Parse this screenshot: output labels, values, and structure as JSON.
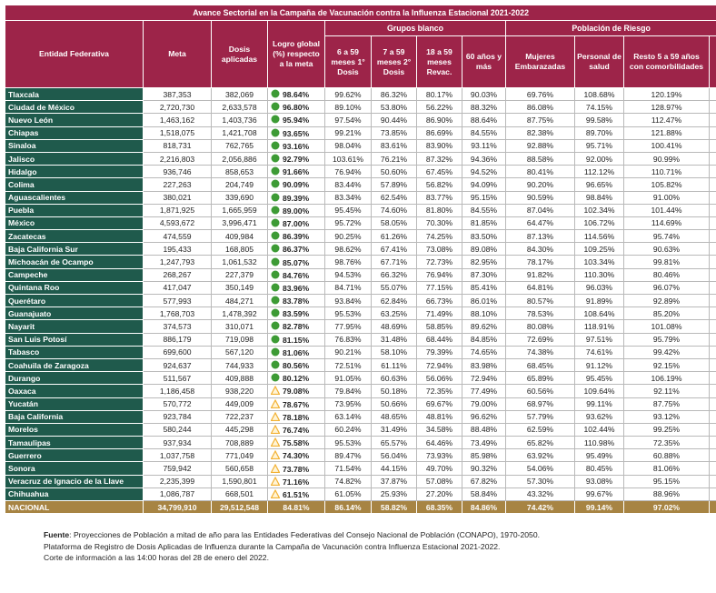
{
  "table": {
    "title": "Avance Sectorial en la Campaña de Vacunación contra la Influenza Estacional 2021-2022",
    "group_headers": [
      "Grupos blanco",
      "Población de Riesgo"
    ],
    "columns": [
      "Entidad Federativa",
      "Meta",
      "Dosis aplicadas",
      "Logro global (%) respecto a la meta",
      "6 a 59 meses 1° Dosis",
      "7 a 59 meses 2° Dosis",
      "18 a 59 meses Revac.",
      "60 años y más",
      "Mujeres Embarazadas",
      "Personal de salud",
      "Resto 5 a 59 años con comorbilidades"
    ],
    "indicator_colors": {
      "circle": "#3d9b35",
      "triangle": "#f2b134"
    },
    "rows": [
      [
        "Tlaxcala",
        "387,353",
        "382,069",
        "98.64%",
        "99.62%",
        "86.32%",
        "80.17%",
        "90.03%",
        "69.76%",
        "108.68%",
        "120.19%"
      ],
      [
        "Ciudad de México",
        "2,720,730",
        "2,633,578",
        "96.80%",
        "89.10%",
        "53.80%",
        "56.22%",
        "88.32%",
        "86.08%",
        "74.15%",
        "128.97%"
      ],
      [
        "Nuevo León",
        "1,463,162",
        "1,403,736",
        "95.94%",
        "97.54%",
        "90.44%",
        "86.90%",
        "88.64%",
        "87.75%",
        "99.58%",
        "112.47%"
      ],
      [
        "Chiapas",
        "1,518,075",
        "1,421,708",
        "93.65%",
        "99.21%",
        "73.85%",
        "86.69%",
        "84.55%",
        "82.38%",
        "89.70%",
        "121.88%"
      ],
      [
        "Sinaloa",
        "818,731",
        "762,765",
        "93.16%",
        "98.04%",
        "83.61%",
        "83.90%",
        "93.11%",
        "92.88%",
        "95.71%",
        "100.41%"
      ],
      [
        "Jalisco",
        "2,216,803",
        "2,056,886",
        "92.79%",
        "103.61%",
        "76.21%",
        "87.32%",
        "94.36%",
        "88.58%",
        "92.00%",
        "90.99%"
      ],
      [
        "Hidalgo",
        "936,746",
        "858,653",
        "91.66%",
        "76.94%",
        "50.60%",
        "67.45%",
        "94.52%",
        "80.41%",
        "112.12%",
        "110.71%"
      ],
      [
        "Colima",
        "227,263",
        "204,749",
        "90.09%",
        "83.44%",
        "57.89%",
        "56.82%",
        "94.09%",
        "90.20%",
        "96.65%",
        "105.82%"
      ],
      [
        "Aguascalientes",
        "380,021",
        "339,690",
        "89.39%",
        "83.34%",
        "62.54%",
        "83.77%",
        "95.15%",
        "90.59%",
        "98.84%",
        "91.00%"
      ],
      [
        "Puebla",
        "1,871,925",
        "1,665,959",
        "89.00%",
        "95.45%",
        "74.60%",
        "81.80%",
        "84.55%",
        "87.04%",
        "102.34%",
        "101.44%"
      ],
      [
        "México",
        "4,593,672",
        "3,996,471",
        "87.00%",
        "95.72%",
        "58.05%",
        "70.30%",
        "81.85%",
        "64.47%",
        "106.72%",
        "114.69%"
      ],
      [
        "Zacatecas",
        "474,559",
        "409,984",
        "86.39%",
        "90.25%",
        "61.26%",
        "74.25%",
        "83.50%",
        "87.13%",
        "114.56%",
        "95.74%"
      ],
      [
        "Baja California Sur",
        "195,433",
        "168,805",
        "86.37%",
        "98.62%",
        "67.41%",
        "73.08%",
        "89.08%",
        "84.30%",
        "109.25%",
        "90.63%"
      ],
      [
        "Michoacán de Ocampo",
        "1,247,793",
        "1,061,532",
        "85.07%",
        "98.76%",
        "67.71%",
        "72.73%",
        "82.95%",
        "78.17%",
        "103.34%",
        "99.81%"
      ],
      [
        "Campeche",
        "268,267",
        "227,379",
        "84.76%",
        "94.53%",
        "66.32%",
        "76.94%",
        "87.30%",
        "91.82%",
        "110.30%",
        "80.46%"
      ],
      [
        "Quintana Roo",
        "417,047",
        "350,149",
        "83.96%",
        "84.71%",
        "55.07%",
        "77.15%",
        "85.41%",
        "64.81%",
        "96.03%",
        "96.07%"
      ],
      [
        "Querétaro",
        "577,993",
        "484,271",
        "83.78%",
        "93.84%",
        "62.84%",
        "66.73%",
        "86.01%",
        "80.57%",
        "91.89%",
        "92.89%"
      ],
      [
        "Guanajuato",
        "1,768,703",
        "1,478,392",
        "83.59%",
        "95.53%",
        "63.25%",
        "71.49%",
        "88.10%",
        "78.53%",
        "108.64%",
        "85.20%"
      ],
      [
        "Nayarit",
        "374,573",
        "310,071",
        "82.78%",
        "77.95%",
        "48.69%",
        "58.85%",
        "89.62%",
        "80.08%",
        "118.91%",
        "101.08%"
      ],
      [
        "San Luis Potosí",
        "886,179",
        "719,098",
        "81.15%",
        "76.83%",
        "31.48%",
        "68.44%",
        "84.85%",
        "72.69%",
        "97.51%",
        "95.79%"
      ],
      [
        "Tabasco",
        "699,600",
        "567,120",
        "81.06%",
        "90.21%",
        "58.10%",
        "79.39%",
        "74.65%",
        "74.38%",
        "74.61%",
        "99.42%"
      ],
      [
        "Coahuila de Zaragoza",
        "924,637",
        "744,933",
        "80.56%",
        "72.51%",
        "61.11%",
        "72.94%",
        "83.98%",
        "68.45%",
        "91.12%",
        "92.15%"
      ],
      [
        "Durango",
        "511,567",
        "409,888",
        "80.12%",
        "91.05%",
        "60.63%",
        "56.06%",
        "72.94%",
        "65.89%",
        "95.45%",
        "106.19%"
      ],
      [
        "Oaxaca",
        "1,186,458",
        "938,220",
        "79.08%",
        "79.84%",
        "50.18%",
        "72.35%",
        "77.49%",
        "60.56%",
        "109.64%",
        "92.11%"
      ],
      [
        "Yucatán",
        "570,772",
        "449,009",
        "78.67%",
        "73.95%",
        "50.66%",
        "69.67%",
        "79.00%",
        "68.97%",
        "99.11%",
        "87.75%"
      ],
      [
        "Baja California",
        "923,784",
        "722,237",
        "78.18%",
        "63.14%",
        "48.65%",
        "48.81%",
        "96.62%",
        "57.79%",
        "93.62%",
        "93.12%"
      ],
      [
        "Morelos",
        "580,244",
        "445,298",
        "76.74%",
        "60.24%",
        "31.49%",
        "34.58%",
        "88.48%",
        "62.59%",
        "102.44%",
        "99.25%"
      ],
      [
        "Tamaulipas",
        "937,934",
        "708,889",
        "75.58%",
        "95.53%",
        "65.57%",
        "64.46%",
        "73.49%",
        "65.82%",
        "110.98%",
        "72.35%"
      ],
      [
        "Guerrero",
        "1,037,758",
        "771,049",
        "74.30%",
        "89.47%",
        "56.04%",
        "73.93%",
        "85.98%",
        "63.92%",
        "95.49%",
        "60.88%"
      ],
      [
        "Sonora",
        "759,942",
        "560,658",
        "73.78%",
        "71.54%",
        "44.15%",
        "49.70%",
        "90.32%",
        "54.06%",
        "80.45%",
        "81.06%"
      ],
      [
        "Veracruz de Ignacio de la Llave",
        "2,235,399",
        "1,590,801",
        "71.16%",
        "74.82%",
        "37.87%",
        "57.08%",
        "67.82%",
        "57.30%",
        "93.08%",
        "95.15%"
      ],
      [
        "Chihuahua",
        "1,086,787",
        "668,501",
        "61.51%",
        "61.05%",
        "25.93%",
        "27.20%",
        "58.84%",
        "43.32%",
        "99.67%",
        "88.96%"
      ]
    ],
    "indicators": [
      "circle",
      "circle",
      "circle",
      "circle",
      "circle",
      "circle",
      "circle",
      "circle",
      "circle",
      "circle",
      "circle",
      "circle",
      "circle",
      "circle",
      "circle",
      "circle",
      "circle",
      "circle",
      "circle",
      "circle",
      "circle",
      "circle",
      "circle",
      "triangle",
      "triangle",
      "triangle",
      "triangle",
      "triangle",
      "triangle",
      "triangle",
      "triangle",
      "triangle"
    ],
    "total": [
      "NACIONAL",
      "34,799,910",
      "29,512,548",
      "84.81%",
      "86.14%",
      "58.82%",
      "68.35%",
      "84.86%",
      "74.42%",
      "99.14%",
      "97.02%"
    ]
  },
  "footer": {
    "source_label": "Fuente",
    "source_text": ": Proyecciones de Población a mitad de año para las Entidades Federativas del Consejo Nacional de Población (CONAPO), 1970-2050.",
    "lines": [
      "Plataforma de Registro de Dosis Aplicadas de Influenza durante la Campaña de Vacunación contra Influenza Estacional 2021-2022.",
      "Corte de información a las 14:00 horas del 28 de enero del 2022."
    ]
  }
}
